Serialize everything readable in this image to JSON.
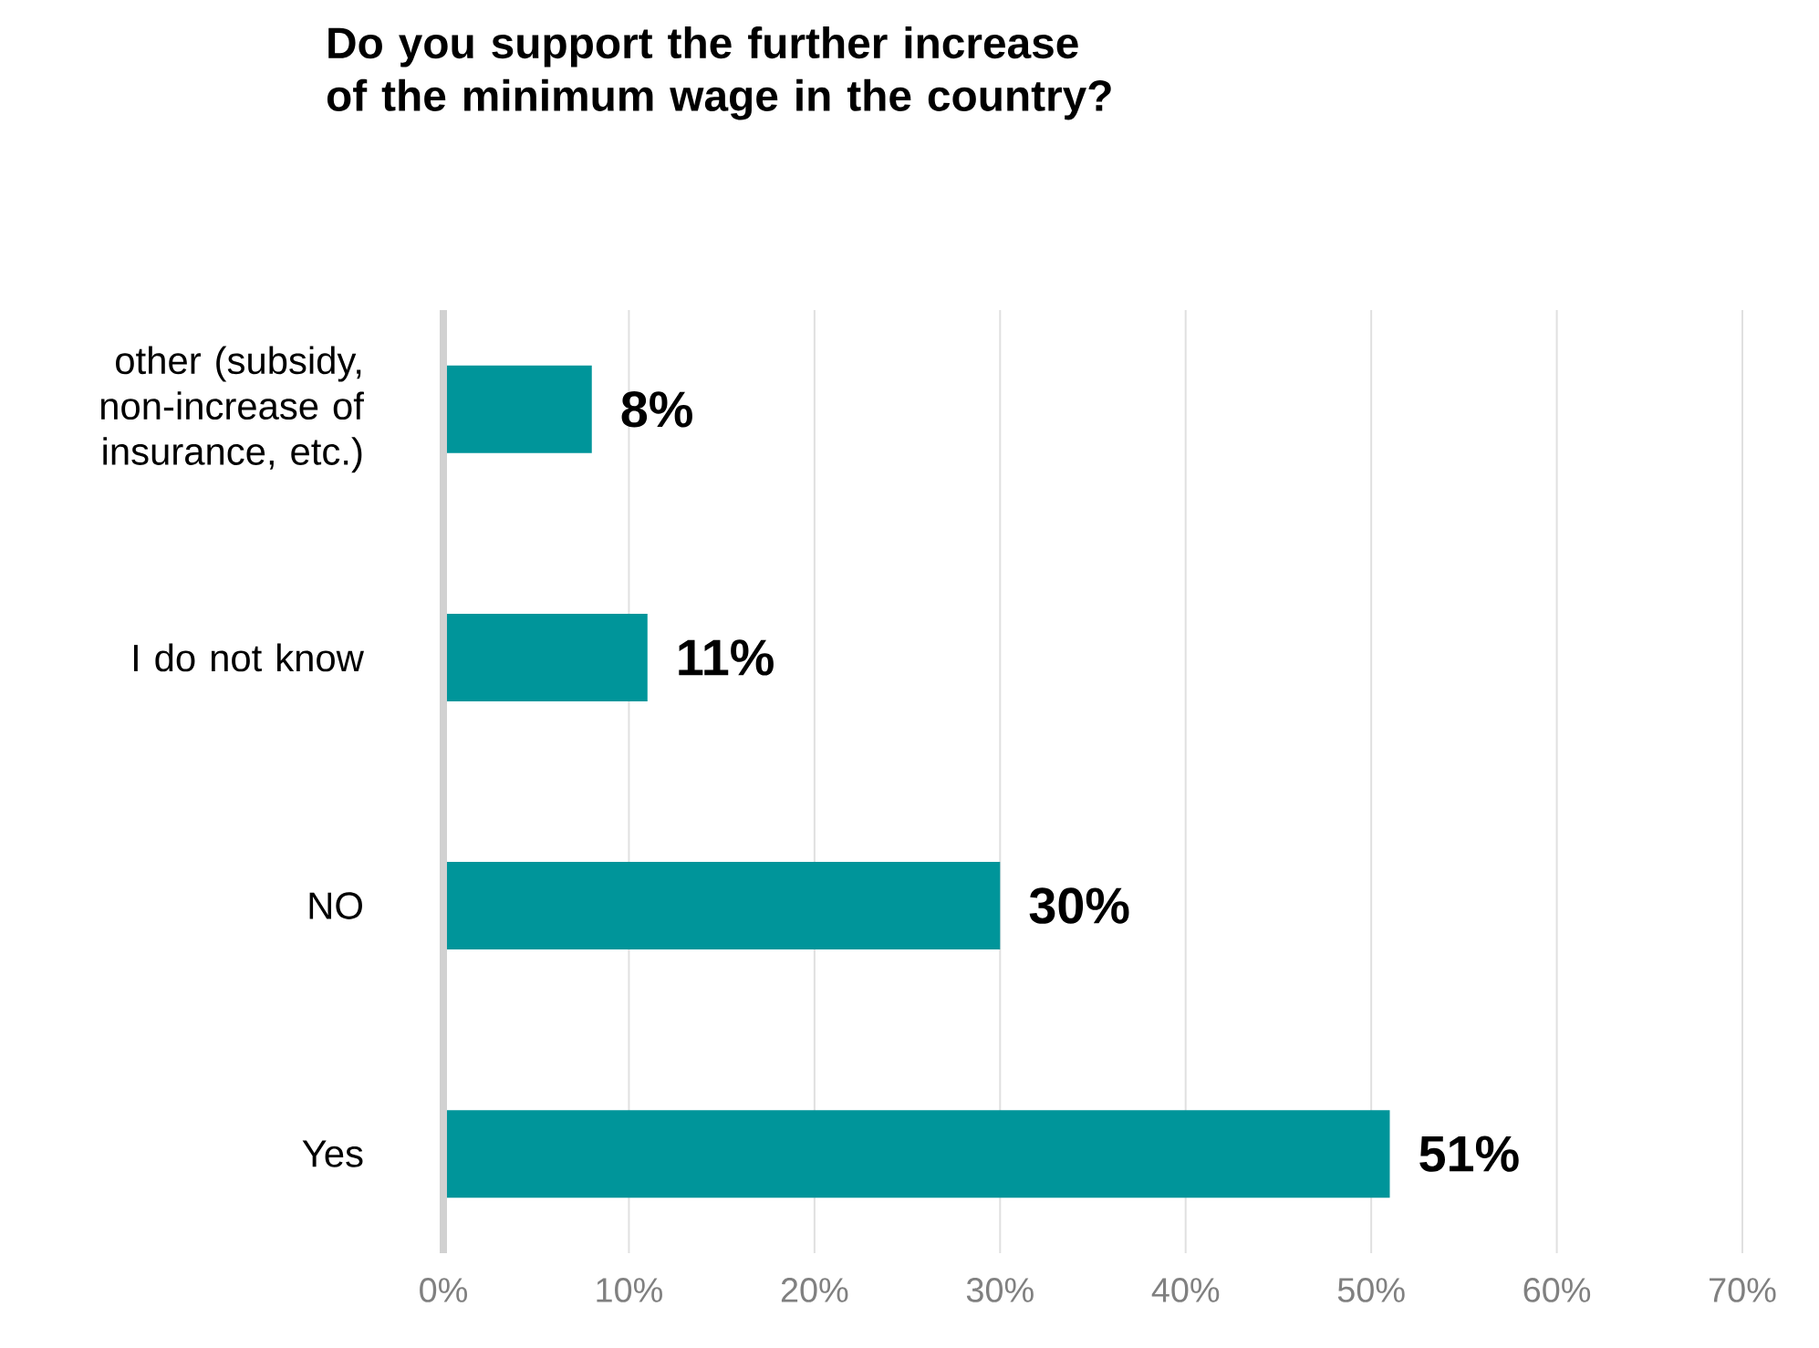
{
  "chart_data": {
    "type": "bar",
    "orientation": "horizontal",
    "title": "Do you support the further increase of the minimum wage in the country?",
    "categories": [
      "other (subsidy, non-increase of insurance, etc.)",
      "I do not know",
      "NO",
      "Yes"
    ],
    "values": [
      8,
      11,
      30,
      51
    ],
    "value_labels": [
      "8%",
      "11%",
      "30%",
      "51%"
    ],
    "color": "#00959a",
    "xlim": [
      0,
      70
    ],
    "xticks": [
      {
        "value": 0,
        "label": "0%"
      },
      {
        "value": 10,
        "label": "10%"
      },
      {
        "value": 20,
        "label": "20%"
      },
      {
        "value": 30,
        "label": "30%"
      },
      {
        "value": 40,
        "label": "40%"
      },
      {
        "value": 50,
        "label": "50%"
      },
      {
        "value": 60,
        "label": "60%"
      },
      {
        "value": 70,
        "label": "70%"
      }
    ],
    "grid": "x"
  }
}
